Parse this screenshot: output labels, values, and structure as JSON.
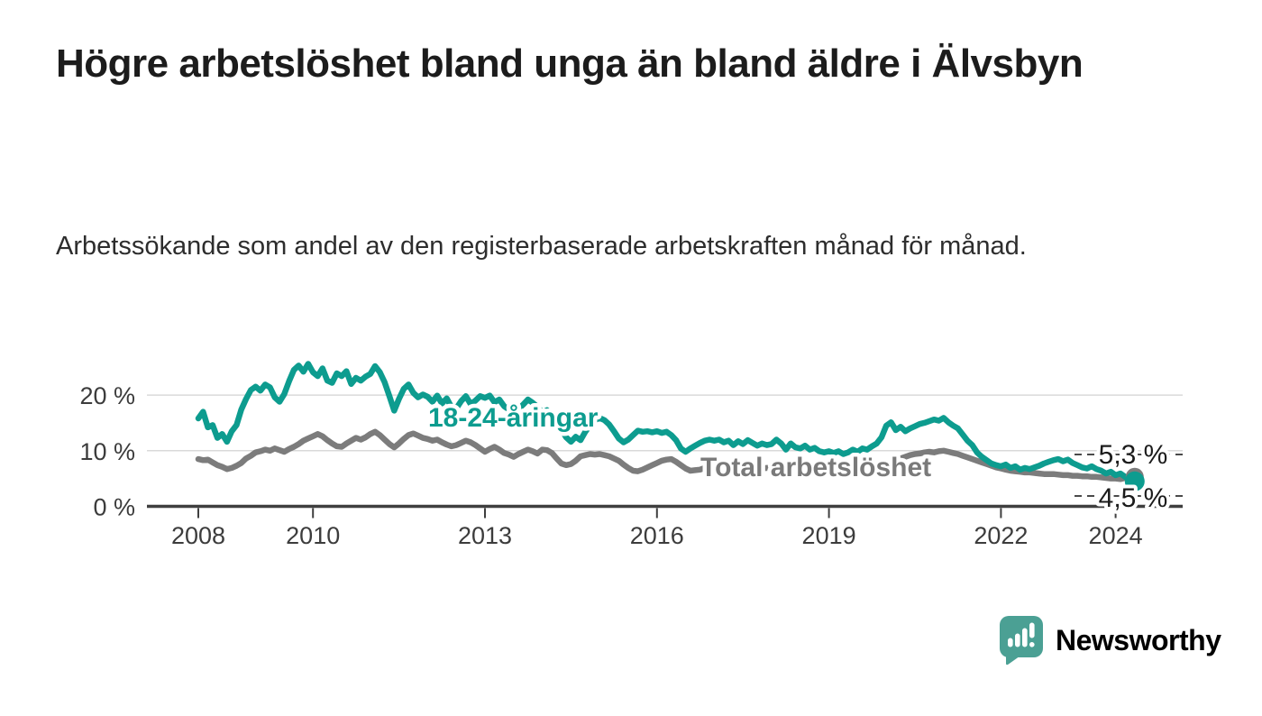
{
  "page": {
    "title": "Högre arbetslöshet bland unga än bland äldre i Älvsbyn",
    "subtitle": "Arbetssökande som andel av den registerbaserade arbetskraften månad för månad.",
    "background": "#ffffff"
  },
  "chart_data": {
    "type": "line",
    "title": "Högre arbetslöshet bland unga än bland äldre i Älvsbyn",
    "subtitle": "Arbetssökande som andel av den registerbaserade arbetskraften månad för månad.",
    "unit": "%",
    "x_interval": "monthly",
    "x_start": "2008-01",
    "x_end": "2024-05",
    "x_tick_years": [
      2008,
      2010,
      2013,
      2016,
      2019,
      2022,
      2024
    ],
    "y_ticks": [
      {
        "value": 0,
        "label": "0 %"
      },
      {
        "value": 10,
        "label": "10 %"
      },
      {
        "value": 20,
        "label": "20 %"
      }
    ],
    "ylim": [
      0,
      27.5
    ],
    "grid": "horizontal",
    "legend_position": "inline-labels",
    "series": [
      {
        "key": "total",
        "name": "Total arbetslöshet",
        "color": "#7c7c7c",
        "end_label": "5,3 %",
        "latest_value": 5.3,
        "values": [
          8.5,
          8.3,
          8.4,
          7.9,
          7.4,
          7.1,
          6.7,
          6.9,
          7.3,
          7.8,
          8.6,
          9.1,
          9.7,
          9.9,
          10.2,
          10.0,
          10.4,
          10.1,
          9.8,
          10.3,
          10.7,
          11.2,
          11.8,
          12.2,
          12.6,
          13.0,
          12.6,
          11.9,
          11.3,
          10.8,
          10.7,
          11.3,
          11.8,
          12.3,
          12.0,
          12.4,
          13.0,
          13.4,
          12.8,
          12.0,
          11.2,
          10.6,
          11.3,
          12.1,
          12.8,
          13.1,
          12.7,
          12.3,
          12.1,
          11.8,
          12.0,
          11.5,
          11.1,
          10.8,
          11.0,
          11.4,
          11.8,
          11.5,
          11.0,
          10.4,
          9.8,
          10.3,
          10.7,
          10.2,
          9.6,
          9.3,
          8.9,
          9.4,
          9.8,
          10.2,
          9.9,
          9.5,
          10.2,
          10.1,
          9.6,
          8.6,
          7.7,
          7.4,
          7.6,
          8.2,
          9.0,
          9.2,
          9.4,
          9.3,
          9.4,
          9.2,
          9.0,
          8.6,
          8.2,
          7.5,
          6.9,
          6.4,
          6.3,
          6.6,
          7.0,
          7.4,
          7.8,
          8.2,
          8.4,
          8.5,
          8.0,
          7.4,
          6.8,
          6.4,
          6.5,
          6.6,
          6.9,
          7.2,
          7.3,
          7.4,
          7.3,
          7.2,
          6.9,
          6.6,
          6.4,
          6.4,
          6.5,
          6.6,
          6.8,
          6.9,
          6.8,
          6.6,
          6.5,
          6.4,
          6.1,
          5.9,
          5.8,
          6.1,
          6.0,
          5.9,
          5.9,
          5.9,
          6.1,
          6.3,
          6.5,
          6.4,
          6.2,
          6.4,
          6.6,
          6.8,
          6.9,
          7.0,
          7.1,
          7.3,
          7.6,
          7.8,
          8.1,
          8.6,
          8.9,
          9.2,
          9.4,
          9.5,
          9.7,
          9.8,
          9.7,
          9.9,
          10.0,
          9.8,
          9.6,
          9.4,
          9.1,
          8.8,
          8.5,
          8.2,
          7.9,
          7.6,
          7.3,
          7.0,
          6.8,
          6.6,
          6.4,
          6.3,
          6.2,
          6.1,
          6.1,
          6.0,
          5.9,
          5.8,
          5.8,
          5.8,
          5.7,
          5.6,
          5.6,
          5.5,
          5.5,
          5.4,
          5.4,
          5.3,
          5.3,
          5.2,
          5.1,
          5.0,
          5.0,
          4.9,
          5.1,
          5.2,
          5.3
        ]
      },
      {
        "key": "youth",
        "name": "18-24-åringar",
        "color": "#0d9c8f",
        "end_label": "4,5 %",
        "latest_value": 4.5,
        "values": [
          15.8,
          17.0,
          14.2,
          14.6,
          12.3,
          13.0,
          11.6,
          13.5,
          14.6,
          17.4,
          19.3,
          20.9,
          21.5,
          20.8,
          21.9,
          21.4,
          19.6,
          18.8,
          20.2,
          22.5,
          24.5,
          25.3,
          24.2,
          25.6,
          24.1,
          23.4,
          24.8,
          22.6,
          22.2,
          23.9,
          23.4,
          24.3,
          22.0,
          23.1,
          22.6,
          23.3,
          23.8,
          25.2,
          24.1,
          22.3,
          19.8,
          17.2,
          19.3,
          21.1,
          21.9,
          20.4,
          19.6,
          20.1,
          19.7,
          18.8,
          19.9,
          18.5,
          19.4,
          17.8,
          17.6,
          18.9,
          19.8,
          18.4,
          19.0,
          19.8,
          19.5,
          19.9,
          18.7,
          19.2,
          18.0,
          17.4,
          16.6,
          17.5,
          18.3,
          19.2,
          18.6,
          17.9,
          16.8,
          17.3,
          16.1,
          15.2,
          13.8,
          12.4,
          11.6,
          12.5,
          11.9,
          13.4,
          14.6,
          15.5,
          15.9,
          15.5,
          14.7,
          13.5,
          12.2,
          11.5,
          12.0,
          12.8,
          13.6,
          13.4,
          13.5,
          13.3,
          13.5,
          13.2,
          13.4,
          12.8,
          11.9,
          10.4,
          9.8,
          10.4,
          10.9,
          11.4,
          11.8,
          12.0,
          11.8,
          12.0,
          11.5,
          11.8,
          11.0,
          11.7,
          11.2,
          11.9,
          11.4,
          10.9,
          11.3,
          11.0,
          11.2,
          12.0,
          11.3,
          10.2,
          11.3,
          10.6,
          10.4,
          10.9,
          10.2,
          10.5,
          9.9,
          9.7,
          9.9,
          9.6,
          9.9,
          9.4,
          9.7,
          10.2,
          9.8,
          10.4,
          10.2,
          10.8,
          11.3,
          12.4,
          14.5,
          15.1,
          13.7,
          14.3,
          13.5,
          14.0,
          14.4,
          14.8,
          15.0,
          15.3,
          15.6,
          15.4,
          15.9,
          15.1,
          14.5,
          14.0,
          12.9,
          11.8,
          11.0,
          9.7,
          8.9,
          8.3,
          7.7,
          7.4,
          7.2,
          7.5,
          6.9,
          7.2,
          6.6,
          6.9,
          6.7,
          7.0,
          7.3,
          7.7,
          8.0,
          8.3,
          8.5,
          8.1,
          8.4,
          7.8,
          7.4,
          7.0,
          6.8,
          7.2,
          6.7,
          6.4,
          5.9,
          6.2,
          5.6,
          5.9,
          5.3,
          4.8,
          4.5
        ]
      }
    ]
  },
  "branding": {
    "name": "Newsworthy",
    "icon": "newsworthy-speech-bubble-bar-chart-icon",
    "icon_color": "#4ba094",
    "text_color": "#2f9f93"
  }
}
